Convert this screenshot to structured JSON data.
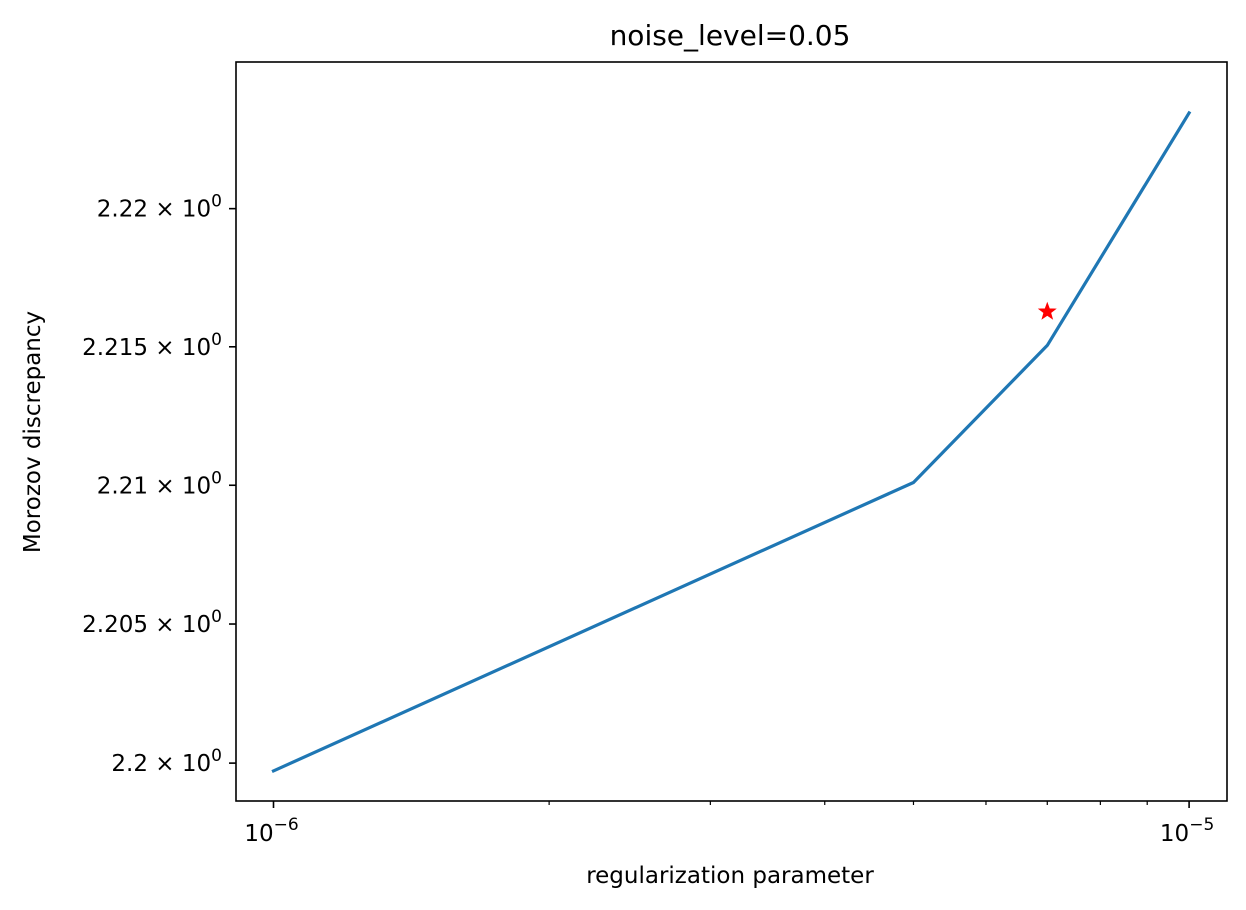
{
  "chart_data": {
    "type": "line",
    "title": "noise_level=0.05",
    "xlabel": "regularization parameter",
    "ylabel": "Morozov discrepancy",
    "xscale": "log",
    "yscale": "log",
    "xlim": [
      9.1e-07,
      1.1e-05
    ],
    "ylim": [
      2.19864,
      2.22532
    ],
    "x_ticks": [
      {
        "value": 1e-06,
        "base": "10",
        "exp": "−6"
      },
      {
        "value": 1e-05,
        "base": "10",
        "exp": "−5"
      }
    ],
    "y_ticks": [
      {
        "value": 2.2,
        "mantissa": "2.2",
        "times": "×",
        "base": "10",
        "exp": "0"
      },
      {
        "value": 2.205,
        "mantissa": "2.205",
        "times": "×",
        "base": "10",
        "exp": "0"
      },
      {
        "value": 2.21,
        "mantissa": "2.21",
        "times": "×",
        "base": "10",
        "exp": "0"
      },
      {
        "value": 2.215,
        "mantissa": "2.215",
        "times": "×",
        "base": "10",
        "exp": "0"
      },
      {
        "value": 2.22,
        "mantissa": "2.22",
        "times": "×",
        "base": "10",
        "exp": "0"
      }
    ],
    "series": [
      {
        "color": "#1f77b4",
        "x": [
          1e-06,
          5e-06,
          7e-06,
          1e-05
        ],
        "y": [
          2.19972,
          2.2101,
          2.21505,
          2.22347
        ]
      }
    ],
    "marker": {
      "x": 7e-06,
      "y": 2.21627,
      "symbol": "star",
      "color": "#ff0000"
    },
    "grid": false
  }
}
